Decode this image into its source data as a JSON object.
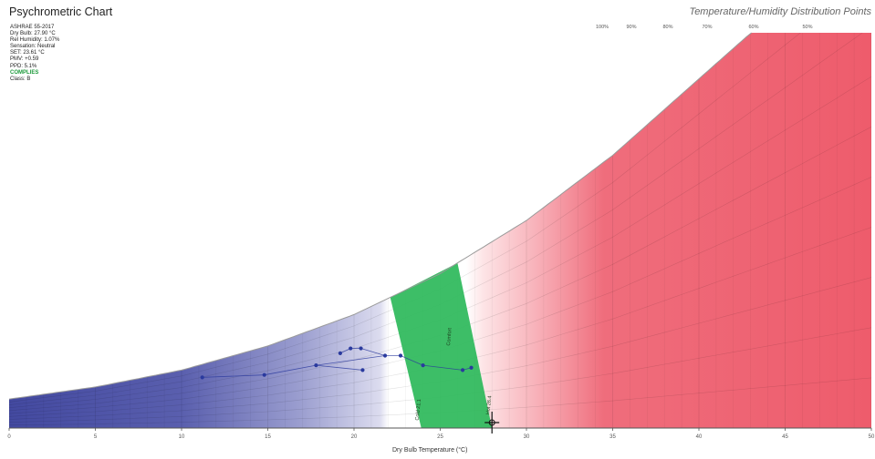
{
  "title": "Psychrometric Chart",
  "subtitle": "Temperature/Humidity Distribution Points",
  "info": {
    "standard": "ASHRAE 55-2017",
    "dry_bulb": "Dry Bulb: 27.90 °C",
    "rel_humidity": "Rel Humidity: 1.07%",
    "sensation": "Sensation: Neutral",
    "set": "SET: 23.61 °C",
    "pmv": "PMV: +0.59",
    "ppd": "PPD: 5.1%",
    "status": "COMPLIES",
    "class": "Class: B"
  },
  "colors": {
    "cold": "#4a4fa6",
    "comfort": "#2db85a",
    "hot": "#ef5f6f",
    "points": "#2a3a9e",
    "status": "#1e9a3c"
  },
  "chart_data": {
    "type": "scatter",
    "title": "Psychrometric Chart",
    "subtitle": "Temperature/Humidity Distribution Points",
    "xlabel": "Dry Bulb Temperature (°C)",
    "xlim": [
      0,
      50
    ],
    "x_ticks": [
      "0",
      "5",
      "10",
      "15",
      "20",
      "25",
      "30",
      "35",
      "40",
      "45",
      "50"
    ],
    "rh_labels": [
      "100%",
      "90%",
      "80%",
      "70%",
      "60%",
      "50%"
    ],
    "comfort_zone_labels": [
      "Cold 21.1",
      "Hot 26.4",
      "Comfort"
    ],
    "saturation_curve": [
      [
        0,
        0.12
      ],
      [
        5,
        0.17
      ],
      [
        10,
        0.24
      ],
      [
        15,
        0.34
      ],
      [
        20,
        0.47
      ],
      [
        25,
        0.64
      ],
      [
        30,
        0.86
      ],
      [
        35,
        1.13
      ],
      [
        38,
        1.32
      ]
    ],
    "series": [
      {
        "values": [
          {
            "x": 11.2,
            "y": 0.21
          },
          {
            "x": 14.8,
            "y": 0.22
          },
          {
            "x": 17.8,
            "y": 0.26
          },
          {
            "x": 19.2,
            "y": 0.31
          },
          {
            "x": 19.8,
            "y": 0.33
          },
          {
            "x": 20.4,
            "y": 0.33
          },
          {
            "x": 20.5,
            "y": 0.24
          },
          {
            "x": 21.8,
            "y": 0.3
          },
          {
            "x": 22.7,
            "y": 0.3
          },
          {
            "x": 24.0,
            "y": 0.26
          },
          {
            "x": 26.3,
            "y": 0.24
          },
          {
            "x": 26.8,
            "y": 0.25
          }
        ]
      }
    ],
    "grid": true
  }
}
